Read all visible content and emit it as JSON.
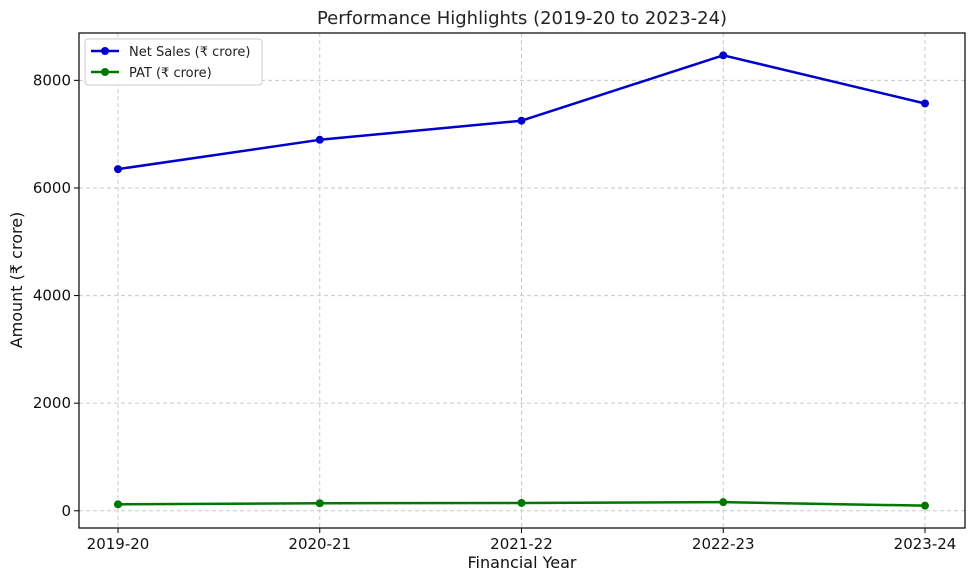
{
  "chart_data": {
    "type": "line",
    "title": "Performance Highlights (2019-20 to 2023-24)",
    "xlabel": "Financial Year",
    "ylabel": "Amount (₹ crore)",
    "categories": [
      "2019-20",
      "2020-21",
      "2021-22",
      "2022-23",
      "2023-24"
    ],
    "ylim": [
      -320,
      8880
    ],
    "yticks": [
      0,
      2000,
      4000,
      6000,
      8000
    ],
    "grid": true,
    "legend_position": "top-left",
    "series": [
      {
        "name": "Net Sales (₹ crore)",
        "color": "#0000cc",
        "values": [
          6350,
          6895,
          7250,
          8465,
          7570
        ]
      },
      {
        "name": "PAT (₹ crore)",
        "color": "#007700",
        "values": [
          120,
          140,
          145,
          160,
          95
        ]
      }
    ]
  }
}
